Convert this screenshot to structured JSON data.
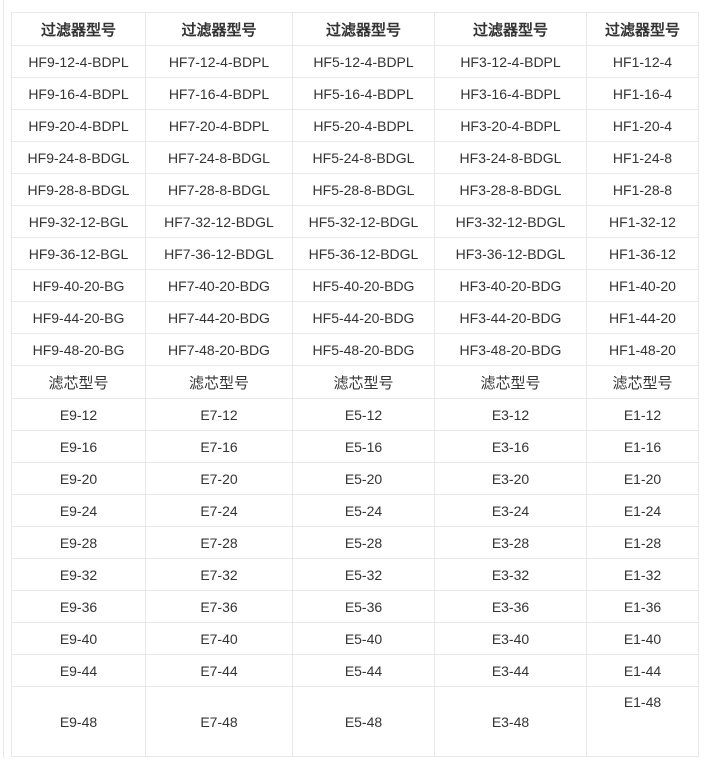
{
  "colors": {
    "text": "#333333",
    "border": "#e8e8e8",
    "page_background": "#ffffff"
  },
  "table": {
    "sections": [
      {
        "name": "filter-models",
        "header_labels": [
          "过滤器型号",
          "过滤器型号",
          "过滤器型号",
          "过滤器型号",
          "过滤器型号"
        ],
        "rows": [
          [
            "HF9-12-4-BDPL",
            "HF7-12-4-BDPL",
            "HF5-12-4-BDPL",
            "HF3-12-4-BDPL",
            "HF1-12-4"
          ],
          [
            "HF9-16-4-BDPL",
            "HF7-16-4-BDPL",
            "HF5-16-4-BDPL",
            "HF3-16-4-BDPL",
            "HF1-16-4"
          ],
          [
            "HF9-20-4-BDPL",
            "HF7-20-4-BDPL",
            "HF5-20-4-BDPL",
            "HF3-20-4-BDPL",
            "HF1-20-4"
          ],
          [
            "HF9-24-8-BDGL",
            "HF7-24-8-BDGL",
            "HF5-24-8-BDGL",
            "HF3-24-8-BDGL",
            "HF1-24-8"
          ],
          [
            "HF9-28-8-BDGL",
            "HF7-28-8-BDGL",
            "HF5-28-8-BDGL",
            "HF3-28-8-BDGL",
            "HF1-28-8"
          ],
          [
            "HF9-32-12-BGL",
            "HF7-32-12-BDGL",
            "HF5-32-12-BDGL",
            "HF3-32-12-BDGL",
            "HF1-32-12"
          ],
          [
            "HF9-36-12-BGL",
            "HF7-36-12-BDGL",
            "HF5-36-12-BDGL",
            "HF3-36-12-BDGL",
            "HF1-36-12"
          ],
          [
            "HF9-40-20-BG",
            "HF7-40-20-BDG",
            "HF5-40-20-BDG",
            "HF3-40-20-BDG",
            "HF1-40-20"
          ],
          [
            "HF9-44-20-BG",
            "HF7-44-20-BDG",
            "HF5-44-20-BDG",
            "HF3-44-20-BDG",
            "HF1-44-20"
          ],
          [
            "HF9-48-20-BG",
            "HF7-48-20-BDG",
            "HF5-48-20-BDG",
            "HF3-48-20-BDG",
            "HF1-48-20"
          ]
        ]
      },
      {
        "name": "element-models",
        "header_labels": [
          "滤芯型号",
          "滤芯型号",
          "滤芯型号",
          "滤芯型号",
          "滤芯型号"
        ],
        "rows": [
          [
            "E9-12",
            "E7-12",
            "E5-12",
            "E3-12",
            "E1-12"
          ],
          [
            "E9-16",
            "E7-16",
            "E5-16",
            "E3-16",
            "E1-16"
          ],
          [
            "E9-20",
            "E7-20",
            "E5-20",
            "E3-20",
            "E1-20"
          ],
          [
            "E9-24",
            "E7-24",
            "E5-24",
            "E3-24",
            "E1-24"
          ],
          [
            "E9-28",
            "E7-28",
            "E5-28",
            "E3-28",
            "E1-28"
          ],
          [
            "E9-32",
            "E7-32",
            "E5-32",
            "E3-32",
            "E1-32"
          ],
          [
            "E9-36",
            "E7-36",
            "E5-36",
            "E3-36",
            "E1-36"
          ],
          [
            "E9-40",
            "E7-40",
            "E5-40",
            "E3-40",
            "E1-40"
          ],
          [
            "E9-44",
            "E7-44",
            "E5-44",
            "E3-44",
            "E1-44"
          ],
          [
            "E9-48",
            "E7-48",
            "E5-48",
            "E3-48",
            "E1-48"
          ]
        ]
      }
    ]
  }
}
